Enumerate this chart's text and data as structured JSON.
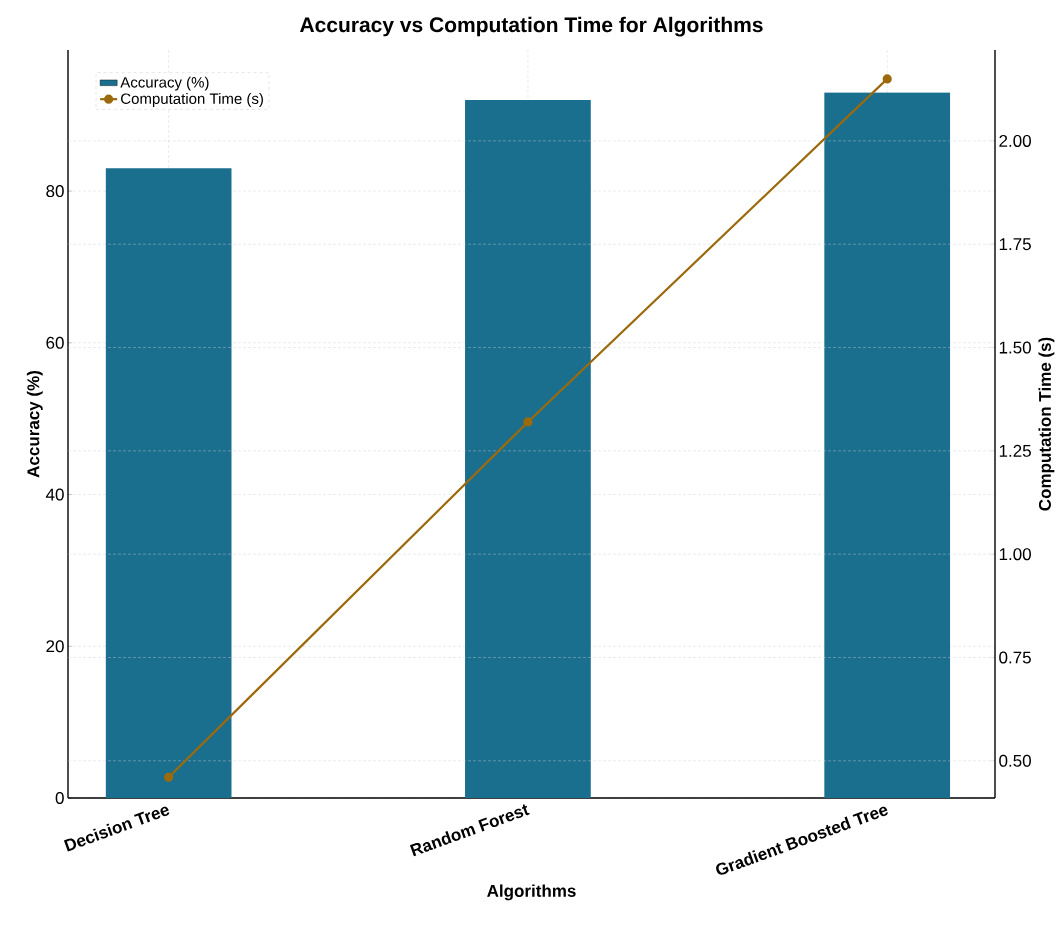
{
  "chart_data": {
    "type": "bar",
    "title": "Accuracy vs Computation Time for Algorithms",
    "xlabel": "Algorithms",
    "ylabel": "Accuracy (%)",
    "y2label": "Computation Time (s)",
    "categories": [
      "Decision Tree",
      "Random Forest",
      "Gradient Boosted Tree"
    ],
    "series": [
      {
        "name": "Accuracy (%)",
        "color": "#1a6f8e",
        "values": [
          83,
          92,
          93
        ]
      },
      {
        "name": "Computation Time (s)",
        "type": "line",
        "axis": "y2",
        "color": "#9c6a0c",
        "values": [
          0.46,
          1.32,
          2.15
        ]
      }
    ],
    "ylim": [
      0,
      98.6
    ],
    "yticks": [
      0,
      20,
      40,
      60,
      80
    ],
    "y2lim": [
      0.41,
      2.22
    ],
    "y2ticks": [
      {
        "value": 0.5,
        "label": "0.50"
      },
      {
        "value": 0.75,
        "label": "0.75"
      },
      {
        "value": 1,
        "label": "1.00"
      },
      {
        "value": 1.25,
        "label": "1.25"
      },
      {
        "value": 1.5,
        "label": "1.50"
      },
      {
        "value": 1.75,
        "label": "1.75"
      },
      {
        "value": 2,
        "label": "2.00"
      }
    ],
    "grid": true,
    "legend": "top left",
    "marker": "circle"
  }
}
